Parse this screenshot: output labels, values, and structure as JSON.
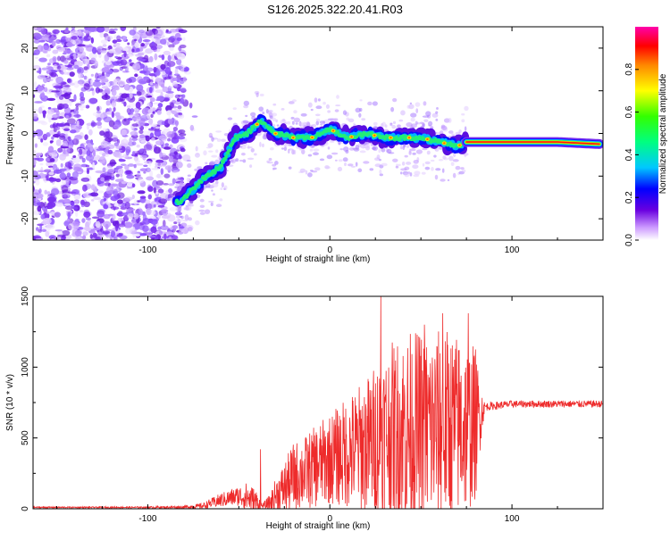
{
  "title": "S126.2025.322.20.41.R03",
  "chart_data": [
    {
      "type": "heatmap",
      "name": "spectrogram",
      "xlabel": "Height of straight line (km)",
      "ylabel": "Frequency (Hz)",
      "xlim": [
        -163,
        150
      ],
      "ylim": [
        -25,
        25
      ],
      "xticks": [
        -100,
        0,
        100
      ],
      "xtick_labels": [
        "-100",
        "0",
        "100"
      ],
      "yticks": [
        -20,
        -10,
        0,
        10,
        20
      ],
      "ytick_labels": [
        "-20",
        "-10",
        "0",
        "10",
        "20"
      ],
      "colorbar": {
        "label": "Normalized spectral amplitude",
        "range": [
          0,
          1
        ],
        "ticks": [
          0.0,
          0.2,
          0.4,
          0.6,
          0.8
        ],
        "tick_labels": [
          "0.0",
          "0.2",
          "0.4",
          "0.6",
          "0.8"
        ]
      },
      "ridge": {
        "x": [
          -82,
          -75,
          -68,
          -60,
          -52,
          -45,
          -38,
          -30,
          -20,
          -10,
          0,
          10,
          20,
          30,
          40,
          50,
          60,
          70,
          75,
          90,
          110,
          125,
          148
        ],
        "y": [
          -16,
          -13,
          -10,
          -8,
          -1,
          0,
          3,
          0,
          -1,
          -1,
          1,
          -1,
          0,
          -1,
          -1,
          -1,
          -2,
          -3,
          -2,
          -2,
          -2,
          -2,
          -2.5
        ]
      }
    },
    {
      "type": "line",
      "name": "snr",
      "xlabel": "Height of straight line (km)",
      "ylabel": "SNR (10 * v/v)",
      "xlim": [
        -163,
        150
      ],
      "ylim": [
        0,
        1500
      ],
      "xticks": [
        -100,
        0,
        100
      ],
      "xtick_labels": [
        "-100",
        "0",
        "100"
      ],
      "yticks": [
        0,
        500,
        1000,
        1500
      ],
      "ytick_labels": [
        "0",
        "500",
        "1000",
        "1500"
      ],
      "color": "#ee2b2b",
      "envelope": {
        "x": [
          -163,
          -140,
          -120,
          -100,
          -80,
          -70,
          -60,
          -50,
          -45,
          -40,
          -37,
          -33,
          -30,
          -25,
          -20,
          -15,
          -10,
          -5,
          0,
          10,
          20,
          25,
          28,
          30,
          35,
          40,
          45,
          50,
          55,
          60,
          65,
          70,
          75,
          80,
          82,
          85,
          100,
          120,
          150
        ],
        "base": [
          10,
          10,
          10,
          10,
          12,
          20,
          60,
          90,
          80,
          40,
          20,
          40,
          90,
          150,
          220,
          250,
          280,
          320,
          350,
          400,
          450,
          480,
          500,
          520,
          540,
          550,
          560,
          560,
          560,
          570,
          580,
          580,
          580,
          600,
          650,
          720,
          740,
          740,
          740
        ],
        "amp": [
          5,
          5,
          5,
          6,
          10,
          20,
          50,
          70,
          110,
          90,
          15,
          60,
          120,
          180,
          250,
          250,
          280,
          300,
          320,
          400,
          480,
          550,
          650,
          600,
          650,
          700,
          700,
          700,
          700,
          700,
          700,
          650,
          620,
          550,
          300,
          30,
          25,
          25,
          25
        ]
      },
      "spikes": [
        {
          "x": 28,
          "y": 1500
        },
        {
          "x": 52,
          "y": 1300
        },
        {
          "x": 62,
          "y": 1380
        },
        {
          "x": 76,
          "y": 1380
        },
        {
          "x": -38,
          "y": 420
        }
      ]
    }
  ]
}
